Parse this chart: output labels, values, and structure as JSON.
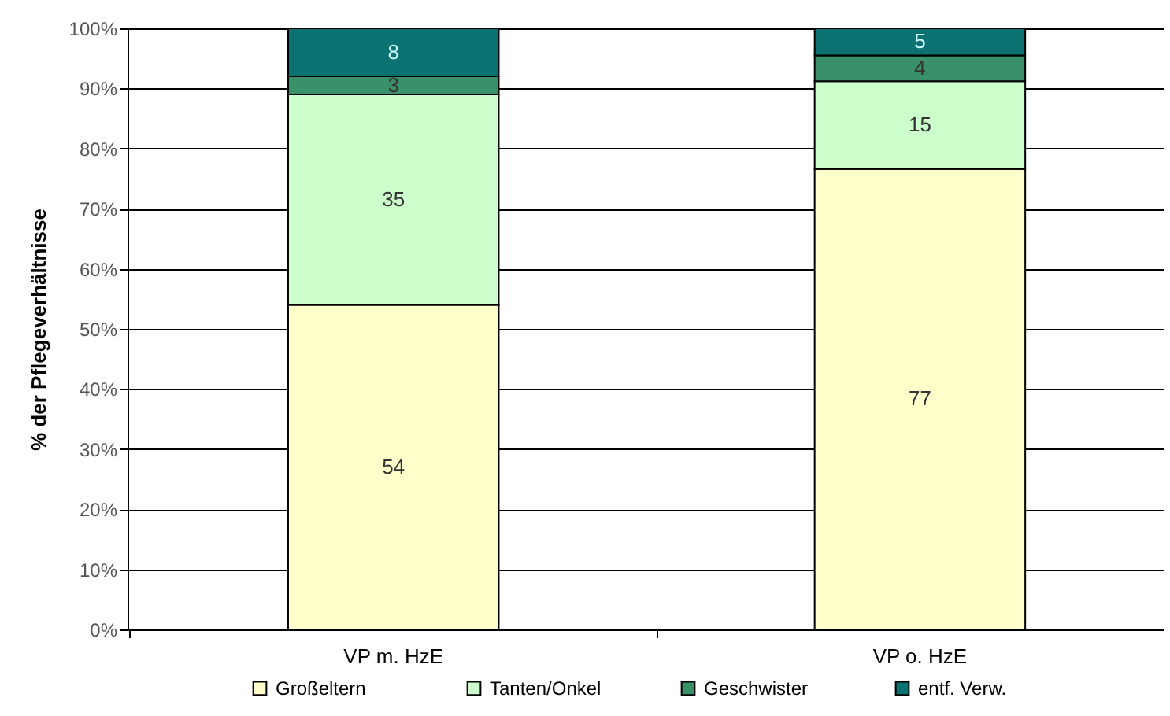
{
  "chart_data": {
    "type": "bar",
    "stacked": true,
    "ylabel": "% der Pflegeverhältnisse",
    "categories": [
      "VP m. HzE",
      "VP o. HzE"
    ],
    "series": [
      {
        "name": "Großeltern",
        "color": "#ffffcc",
        "values": [
          54,
          76.6
        ],
        "value_labels": [
          "54",
          "77"
        ]
      },
      {
        "name": "Tanten/Onkel",
        "color": "#ccffcc",
        "values": [
          35,
          14.6
        ],
        "value_labels": [
          "35",
          "15"
        ]
      },
      {
        "name": "Geschwister",
        "color": "#3a9068",
        "values": [
          3,
          4.3
        ],
        "value_labels": [
          "3",
          "4"
        ]
      },
      {
        "name": "entf. Verw.",
        "color": "#0b7171",
        "values": [
          8,
          4.5
        ],
        "value_labels": [
          "8",
          "5"
        ]
      }
    ],
    "ylim": [
      0,
      100
    ],
    "yticks": [
      {
        "value": 0,
        "label": "0%"
      },
      {
        "value": 10,
        "label": "10%"
      },
      {
        "value": 20,
        "label": "20%"
      },
      {
        "value": 30,
        "label": "30%"
      },
      {
        "value": 40,
        "label": "40%"
      },
      {
        "value": 50,
        "label": "50%"
      },
      {
        "value": 60,
        "label": "60%"
      },
      {
        "value": 70,
        "label": "70%"
      },
      {
        "value": 80,
        "label": "80%"
      },
      {
        "value": 90,
        "label": "90%"
      },
      {
        "value": 100,
        "label": "100%"
      }
    ],
    "grid": "y",
    "legend": "bottom"
  }
}
